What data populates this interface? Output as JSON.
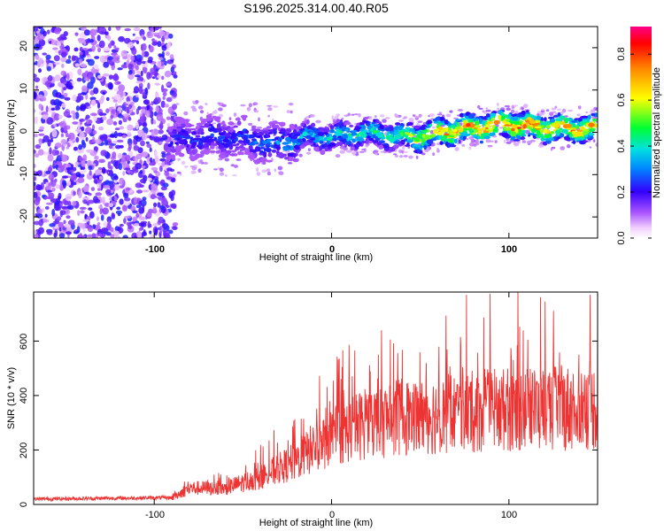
{
  "title": "S196.2025.314.00.40.R05",
  "chart_data": [
    {
      "type": "heatmap",
      "xlabel": "Height of straight line (km)",
      "ylabel": "Frequency (Hz)",
      "xlim": [
        -168,
        150
      ],
      "ylim": [
        -25,
        25
      ],
      "xticks": [
        "-100",
        "0",
        "100"
      ],
      "yticks": [
        "-20",
        "-10",
        "0",
        "10",
        "20"
      ],
      "colorbar": {
        "label": "Normalized spectral amplitude",
        "range": [
          0.0,
          0.92
        ],
        "ticks": [
          "0.0",
          "0.2",
          "0.4",
          "0.6",
          "0.8"
        ]
      },
      "ridge": {
        "x": [
          -90,
          -70,
          -50,
          -30,
          -15,
          0,
          20,
          40,
          50,
          60,
          80,
          100,
          120,
          150
        ],
        "freq": [
          -2,
          -1,
          -1.5,
          -3,
          -1,
          -1,
          0,
          -1,
          -1,
          0,
          1,
          2,
          1,
          1
        ],
        "amplitude": [
          0.25,
          0.3,
          0.3,
          0.35,
          0.4,
          0.45,
          0.5,
          0.55,
          0.75,
          0.8,
          0.85,
          0.9,
          0.85,
          0.8
        ]
      }
    },
    {
      "type": "line",
      "xlabel": "Height of straight line (km)",
      "ylabel": "SNR (10 * v/v)",
      "xlim": [
        -168,
        150
      ],
      "ylim": [
        0,
        780
      ],
      "xticks": [
        "-100",
        "0",
        "100"
      ],
      "yticks": [
        "0",
        "200",
        "400",
        "600"
      ],
      "color": "#ee3333",
      "envelope": {
        "x": [
          -168,
          -90,
          -80,
          -60,
          -40,
          -20,
          0,
          20,
          40,
          60,
          80,
          100,
          120,
          150
        ],
        "y": [
          20,
          25,
          60,
          60,
          100,
          160,
          250,
          300,
          320,
          330,
          340,
          350,
          350,
          360
        ]
      },
      "peak": {
        "x": 76,
        "y": 770
      }
    }
  ]
}
